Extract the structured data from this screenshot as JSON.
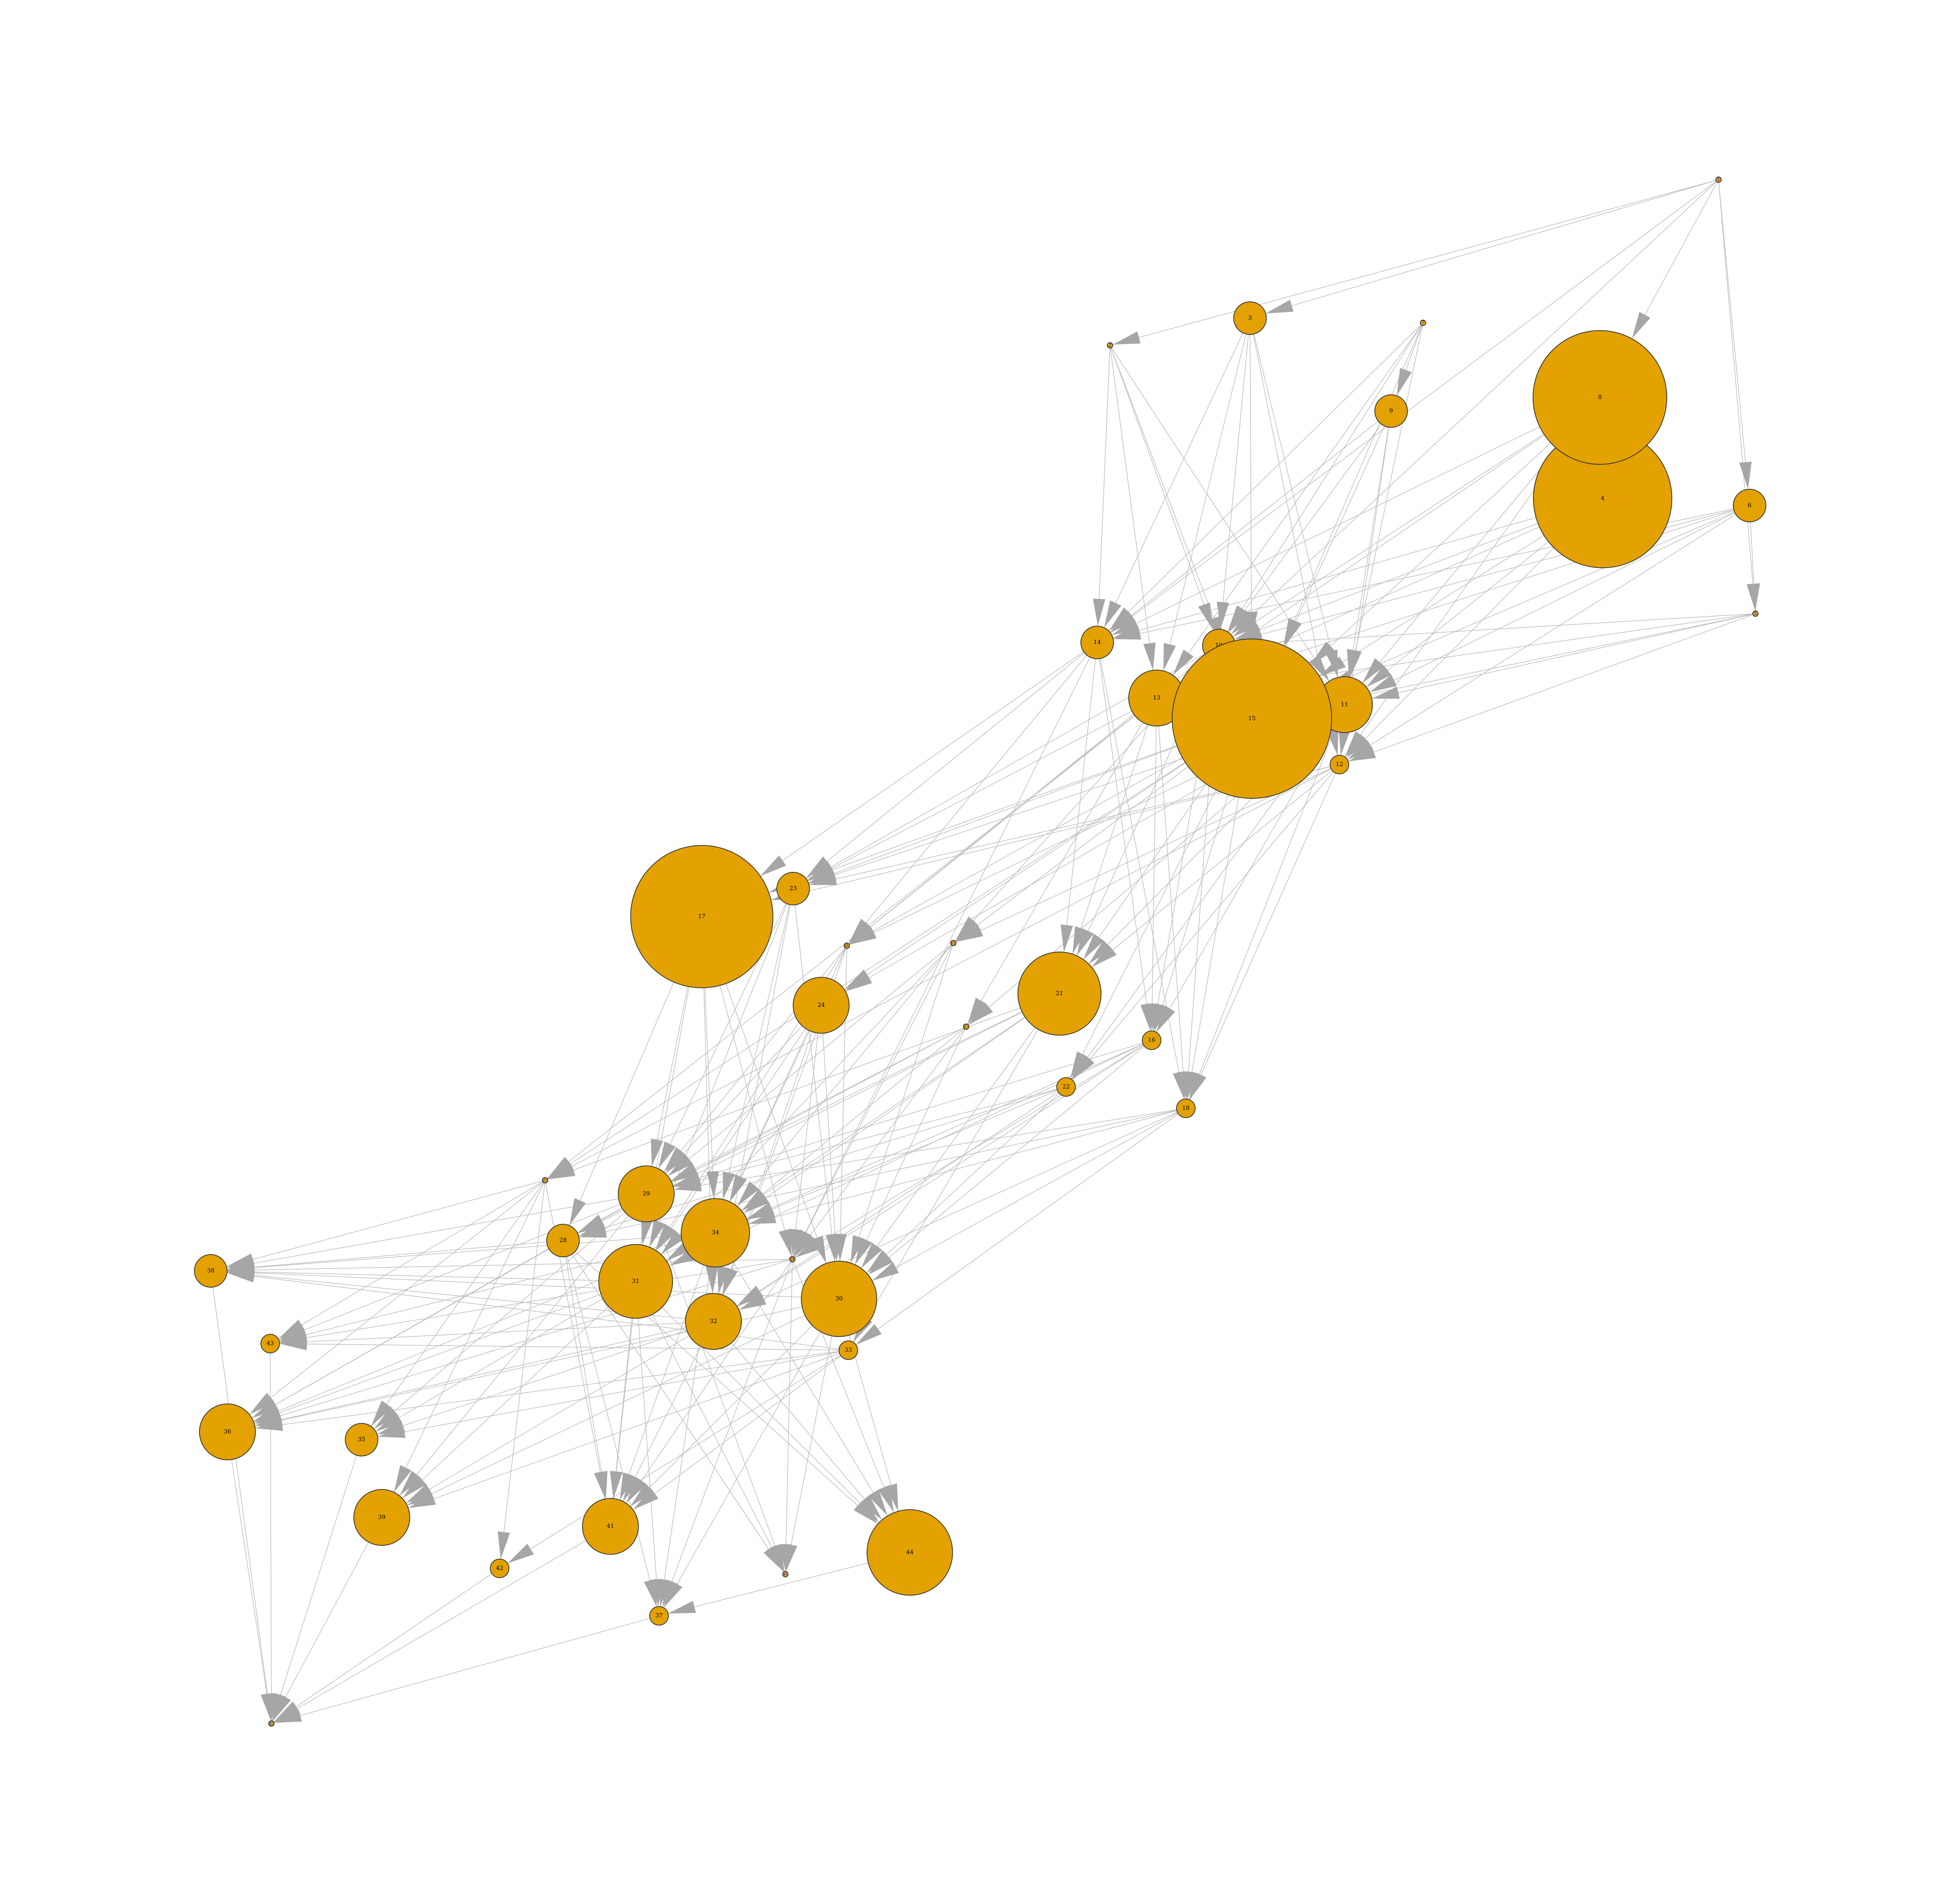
{
  "colors": {
    "node_fill": "#E3A102",
    "node_stroke": "#333333",
    "edge": "#bdbdbd",
    "arrowhead": "#a6a6a6",
    "dot_label": "#3333cc"
  },
  "nodes": [
    {
      "id": "1",
      "size": "dot"
    },
    {
      "id": "2",
      "size": "dot"
    },
    {
      "id": "3",
      "size": "small"
    },
    {
      "id": "4",
      "size": "huge"
    },
    {
      "id": "5",
      "size": "dot"
    },
    {
      "id": "6",
      "size": "small"
    },
    {
      "id": "7",
      "size": "dot"
    },
    {
      "id": "8",
      "size": "huge"
    },
    {
      "id": "9",
      "size": "small"
    },
    {
      "id": "10",
      "size": "small"
    },
    {
      "id": "11",
      "size": "medium"
    },
    {
      "id": "12",
      "size": "tiny"
    },
    {
      "id": "13",
      "size": "medium"
    },
    {
      "id": "14",
      "size": "small"
    },
    {
      "id": "15",
      "size": "huge"
    },
    {
      "id": "16",
      "size": "tiny"
    },
    {
      "id": "17",
      "size": "huge"
    },
    {
      "id": "18",
      "size": "tiny"
    },
    {
      "id": "19",
      "size": "dot"
    },
    {
      "id": "20",
      "size": "dot"
    },
    {
      "id": "21",
      "size": "large"
    },
    {
      "id": "22",
      "size": "tiny"
    },
    {
      "id": "23",
      "size": "small"
    },
    {
      "id": "24",
      "size": "medium"
    },
    {
      "id": "25",
      "size": "dot"
    },
    {
      "id": "26",
      "size": "dot"
    },
    {
      "id": "27",
      "size": "dot"
    },
    {
      "id": "28",
      "size": "small"
    },
    {
      "id": "29",
      "size": "medium"
    },
    {
      "id": "30",
      "size": "large"
    },
    {
      "id": "31",
      "size": "large"
    },
    {
      "id": "32",
      "size": "medium"
    },
    {
      "id": "33",
      "size": "tiny"
    },
    {
      "id": "34",
      "size": "large"
    },
    {
      "id": "35",
      "size": "small"
    },
    {
      "id": "36",
      "size": "medium"
    },
    {
      "id": "37",
      "size": "tiny"
    },
    {
      "id": "38",
      "size": "small"
    },
    {
      "id": "39",
      "size": "medium"
    },
    {
      "id": "40",
      "size": "dot"
    },
    {
      "id": "41",
      "size": "medium"
    },
    {
      "id": "42",
      "size": "tiny"
    },
    {
      "id": "43",
      "size": "tiny"
    },
    {
      "id": "44",
      "size": "large"
    },
    {
      "id": "45",
      "size": "dot"
    }
  ],
  "edges": [
    [
      "1",
      "2"
    ],
    [
      "1",
      "3"
    ],
    [
      "1",
      "8"
    ],
    [
      "1",
      "6"
    ],
    [
      "1",
      "5"
    ],
    [
      "1",
      "10"
    ],
    [
      "1",
      "14"
    ],
    [
      "2",
      "14"
    ],
    [
      "2",
      "15"
    ],
    [
      "2",
      "13"
    ],
    [
      "2",
      "11"
    ],
    [
      "2",
      "10"
    ],
    [
      "3",
      "14"
    ],
    [
      "3",
      "15"
    ],
    [
      "3",
      "13"
    ],
    [
      "3",
      "11"
    ],
    [
      "3",
      "10"
    ],
    [
      "3",
      "12"
    ],
    [
      "7",
      "9"
    ],
    [
      "7",
      "13"
    ],
    [
      "7",
      "15"
    ],
    [
      "7",
      "11"
    ],
    [
      "7",
      "10"
    ],
    [
      "7",
      "14"
    ],
    [
      "9",
      "15"
    ],
    [
      "9",
      "11"
    ],
    [
      "9",
      "12"
    ],
    [
      "9",
      "14"
    ],
    [
      "9",
      "10"
    ],
    [
      "8",
      "15"
    ],
    [
      "8",
      "11"
    ],
    [
      "8",
      "10"
    ],
    [
      "8",
      "13"
    ],
    [
      "8",
      "14"
    ],
    [
      "8",
      "12"
    ],
    [
      "4",
      "15"
    ],
    [
      "4",
      "11"
    ],
    [
      "4",
      "10"
    ],
    [
      "4",
      "13"
    ],
    [
      "4",
      "14"
    ],
    [
      "4",
      "12"
    ],
    [
      "6",
      "5"
    ],
    [
      "6",
      "15"
    ],
    [
      "6",
      "11"
    ],
    [
      "6",
      "13"
    ],
    [
      "6",
      "10"
    ],
    [
      "6",
      "14"
    ],
    [
      "6",
      "12"
    ],
    [
      "5",
      "15"
    ],
    [
      "5",
      "11"
    ],
    [
      "5",
      "12"
    ],
    [
      "5",
      "13"
    ],
    [
      "5",
      "10"
    ],
    [
      "14",
      "23"
    ],
    [
      "14",
      "20"
    ],
    [
      "14",
      "21"
    ],
    [
      "14",
      "16"
    ],
    [
      "14",
      "18"
    ],
    [
      "14",
      "17"
    ],
    [
      "14",
      "26"
    ],
    [
      "13",
      "23"
    ],
    [
      "13",
      "20"
    ],
    [
      "13",
      "21"
    ],
    [
      "13",
      "16"
    ],
    [
      "13",
      "18"
    ],
    [
      "13",
      "27"
    ],
    [
      "13",
      "25"
    ],
    [
      "15",
      "23"
    ],
    [
      "15",
      "19"
    ],
    [
      "15",
      "20"
    ],
    [
      "15",
      "21"
    ],
    [
      "15",
      "16"
    ],
    [
      "15",
      "18"
    ],
    [
      "15",
      "22"
    ],
    [
      "15",
      "24"
    ],
    [
      "15",
      "17"
    ],
    [
      "15",
      "25"
    ],
    [
      "11",
      "23"
    ],
    [
      "11",
      "20"
    ],
    [
      "11",
      "21"
    ],
    [
      "11",
      "16"
    ],
    [
      "11",
      "18"
    ],
    [
      "11",
      "22"
    ],
    [
      "11",
      "24"
    ],
    [
      "11",
      "27"
    ],
    [
      "12",
      "23"
    ],
    [
      "12",
      "19"
    ],
    [
      "12",
      "21"
    ],
    [
      "12",
      "18"
    ],
    [
      "12",
      "22"
    ],
    [
      "12",
      "17"
    ],
    [
      "12",
      "25"
    ],
    [
      "10",
      "23"
    ],
    [
      "10",
      "19"
    ],
    [
      "10",
      "21"
    ],
    [
      "10",
      "16"
    ],
    [
      "10",
      "18"
    ],
    [
      "10",
      "20"
    ],
    [
      "17",
      "29"
    ],
    [
      "17",
      "34"
    ],
    [
      "17",
      "31"
    ],
    [
      "17",
      "30"
    ],
    [
      "17",
      "26"
    ],
    [
      "17",
      "28"
    ],
    [
      "17",
      "32"
    ],
    [
      "23",
      "29"
    ],
    [
      "23",
      "34"
    ],
    [
      "23",
      "30"
    ],
    [
      "23",
      "32"
    ],
    [
      "23",
      "31"
    ],
    [
      "24",
      "29"
    ],
    [
      "24",
      "34"
    ],
    [
      "24",
      "30"
    ],
    [
      "24",
      "31"
    ],
    [
      "24",
      "32"
    ],
    [
      "24",
      "26"
    ],
    [
      "21",
      "29"
    ],
    [
      "21",
      "34"
    ],
    [
      "21",
      "30"
    ],
    [
      "21",
      "31"
    ],
    [
      "21",
      "28"
    ],
    [
      "21",
      "25"
    ],
    [
      "21",
      "33"
    ],
    [
      "19",
      "29"
    ],
    [
      "19",
      "34"
    ],
    [
      "19",
      "30"
    ],
    [
      "19",
      "31"
    ],
    [
      "19",
      "26"
    ],
    [
      "20",
      "29"
    ],
    [
      "20",
      "34"
    ],
    [
      "20",
      "30"
    ],
    [
      "20",
      "31"
    ],
    [
      "20",
      "32"
    ],
    [
      "27",
      "29"
    ],
    [
      "27",
      "34"
    ],
    [
      "27",
      "30"
    ],
    [
      "27",
      "26"
    ],
    [
      "27",
      "28"
    ],
    [
      "22",
      "29"
    ],
    [
      "22",
      "34"
    ],
    [
      "22",
      "30"
    ],
    [
      "22",
      "32"
    ],
    [
      "22",
      "28"
    ],
    [
      "16",
      "29"
    ],
    [
      "16",
      "34"
    ],
    [
      "16",
      "30"
    ],
    [
      "16",
      "31"
    ],
    [
      "16",
      "32"
    ],
    [
      "16",
      "26"
    ],
    [
      "18",
      "29"
    ],
    [
      "18",
      "34"
    ],
    [
      "18",
      "30"
    ],
    [
      "18",
      "33"
    ],
    [
      "18",
      "32"
    ],
    [
      "18",
      "28"
    ],
    [
      "25",
      "38"
    ],
    [
      "25",
      "36"
    ],
    [
      "25",
      "43"
    ],
    [
      "25",
      "35"
    ],
    [
      "25",
      "39"
    ],
    [
      "25",
      "42"
    ],
    [
      "25",
      "41"
    ],
    [
      "28",
      "38"
    ],
    [
      "28",
      "36"
    ],
    [
      "28",
      "41"
    ],
    [
      "28",
      "37"
    ],
    [
      "28",
      "40"
    ],
    [
      "28",
      "44"
    ],
    [
      "29",
      "38"
    ],
    [
      "29",
      "36"
    ],
    [
      "29",
      "41"
    ],
    [
      "29",
      "39"
    ],
    [
      "29",
      "35"
    ],
    [
      "29",
      "43"
    ],
    [
      "29",
      "40"
    ],
    [
      "31",
      "38"
    ],
    [
      "31",
      "36"
    ],
    [
      "31",
      "41"
    ],
    [
      "31",
      "39"
    ],
    [
      "31",
      "37"
    ],
    [
      "31",
      "44"
    ],
    [
      "31",
      "40"
    ],
    [
      "32",
      "38"
    ],
    [
      "32",
      "36"
    ],
    [
      "32",
      "41"
    ],
    [
      "32",
      "39"
    ],
    [
      "32",
      "35"
    ],
    [
      "32",
      "43"
    ],
    [
      "32",
      "44"
    ],
    [
      "34",
      "38"
    ],
    [
      "34",
      "36"
    ],
    [
      "34",
      "41"
    ],
    [
      "34",
      "37"
    ],
    [
      "34",
      "35"
    ],
    [
      "34",
      "43"
    ],
    [
      "34",
      "44"
    ],
    [
      "30",
      "38"
    ],
    [
      "30",
      "36"
    ],
    [
      "30",
      "41"
    ],
    [
      "30",
      "39"
    ],
    [
      "30",
      "37"
    ],
    [
      "30",
      "44"
    ],
    [
      "30",
      "40"
    ],
    [
      "33",
      "38"
    ],
    [
      "33",
      "36"
    ],
    [
      "33",
      "35"
    ],
    [
      "33",
      "39"
    ],
    [
      "33",
      "42"
    ],
    [
      "33",
      "41"
    ],
    [
      "33",
      "43"
    ],
    [
      "26",
      "38"
    ],
    [
      "26",
      "36"
    ],
    [
      "26",
      "43"
    ],
    [
      "26",
      "41"
    ],
    [
      "26",
      "37"
    ],
    [
      "26",
      "44"
    ],
    [
      "26",
      "40"
    ],
    [
      "38",
      "45"
    ],
    [
      "43",
      "45"
    ],
    [
      "36",
      "45"
    ],
    [
      "39",
      "45"
    ],
    [
      "37",
      "45"
    ],
    [
      "42",
      "45"
    ],
    [
      "44",
      "37"
    ],
    [
      "35",
      "45"
    ],
    [
      "41",
      "45"
    ]
  ]
}
